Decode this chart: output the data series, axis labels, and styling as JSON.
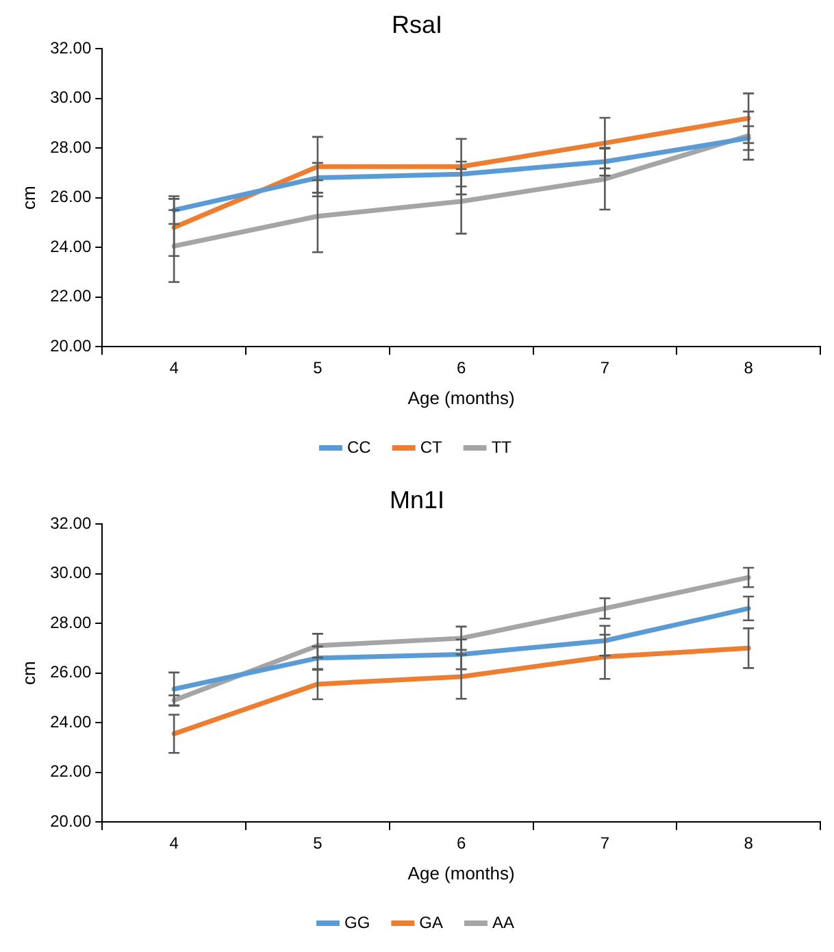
{
  "chart_data": [
    {
      "type": "line",
      "title": "RsaI",
      "xlabel": "Age (months)",
      "ylabel": "cm",
      "categories": [
        "4",
        "5",
        "6",
        "7",
        "8"
      ],
      "ylim": [
        20,
        32
      ],
      "yticks": [
        {
          "value": 20,
          "label": "20.00"
        },
        {
          "value": 22,
          "label": "22.00"
        },
        {
          "value": 24,
          "label": "24.00"
        },
        {
          "value": 26,
          "label": "26.00"
        },
        {
          "value": 28,
          "label": "28.00"
        },
        {
          "value": 30,
          "label": "30.00"
        },
        {
          "value": 32,
          "label": "32.00"
        }
      ],
      "grid": false,
      "legend": "bottom",
      "marker": "none",
      "line_style": "solid",
      "series": [
        {
          "name": "CC",
          "color": "#5b9bd5",
          "values": [
            25.5,
            26.8,
            26.95,
            27.45,
            28.4
          ],
          "errors": [
            0.56,
            0.6,
            0.5,
            0.56,
            0.48
          ]
        },
        {
          "name": "CT",
          "color": "#ed7d31",
          "values": [
            24.8,
            27.25,
            27.25,
            28.2,
            29.2
          ],
          "errors": [
            1.15,
            1.2,
            1.12,
            1.02,
            1.0
          ]
        },
        {
          "name": "TT",
          "color": "#a5a5a5",
          "values": [
            24.05,
            25.25,
            25.85,
            26.75,
            28.5
          ],
          "errors": [
            1.45,
            1.45,
            1.3,
            1.23,
            0.97
          ]
        }
      ]
    },
    {
      "type": "line",
      "title": "Mn1I",
      "xlabel": "Age (months)",
      "ylabel": "cm",
      "categories": [
        "4",
        "5",
        "6",
        "7",
        "8"
      ],
      "ylim": [
        20,
        32
      ],
      "yticks": [
        {
          "value": 20,
          "label": "20.00"
        },
        {
          "value": 22,
          "label": "22.00"
        },
        {
          "value": 24,
          "label": "24.00"
        },
        {
          "value": 26,
          "label": "26.00"
        },
        {
          "value": 28,
          "label": "28.00"
        },
        {
          "value": 30,
          "label": "30.00"
        },
        {
          "value": 32,
          "label": "32.00"
        }
      ],
      "grid": false,
      "legend": "bottom",
      "marker": "none",
      "line_style": "solid",
      "series": [
        {
          "name": "GG",
          "color": "#5b9bd5",
          "values": [
            25.35,
            26.6,
            26.75,
            27.3,
            28.6
          ],
          "errors": [
            0.67,
            0.47,
            0.6,
            0.6,
            0.48
          ]
        },
        {
          "name": "GA",
          "color": "#ed7d31",
          "values": [
            23.55,
            25.55,
            25.85,
            26.65,
            27.0
          ],
          "errors": [
            0.77,
            0.61,
            0.89,
            0.89,
            0.8
          ]
        },
        {
          "name": "AA",
          "color": "#a5a5a5",
          "values": [
            24.9,
            27.1,
            27.4,
            28.6,
            29.85
          ],
          "errors": [
            0.2,
            0.48,
            0.47,
            0.41,
            0.39
          ]
        }
      ]
    }
  ]
}
